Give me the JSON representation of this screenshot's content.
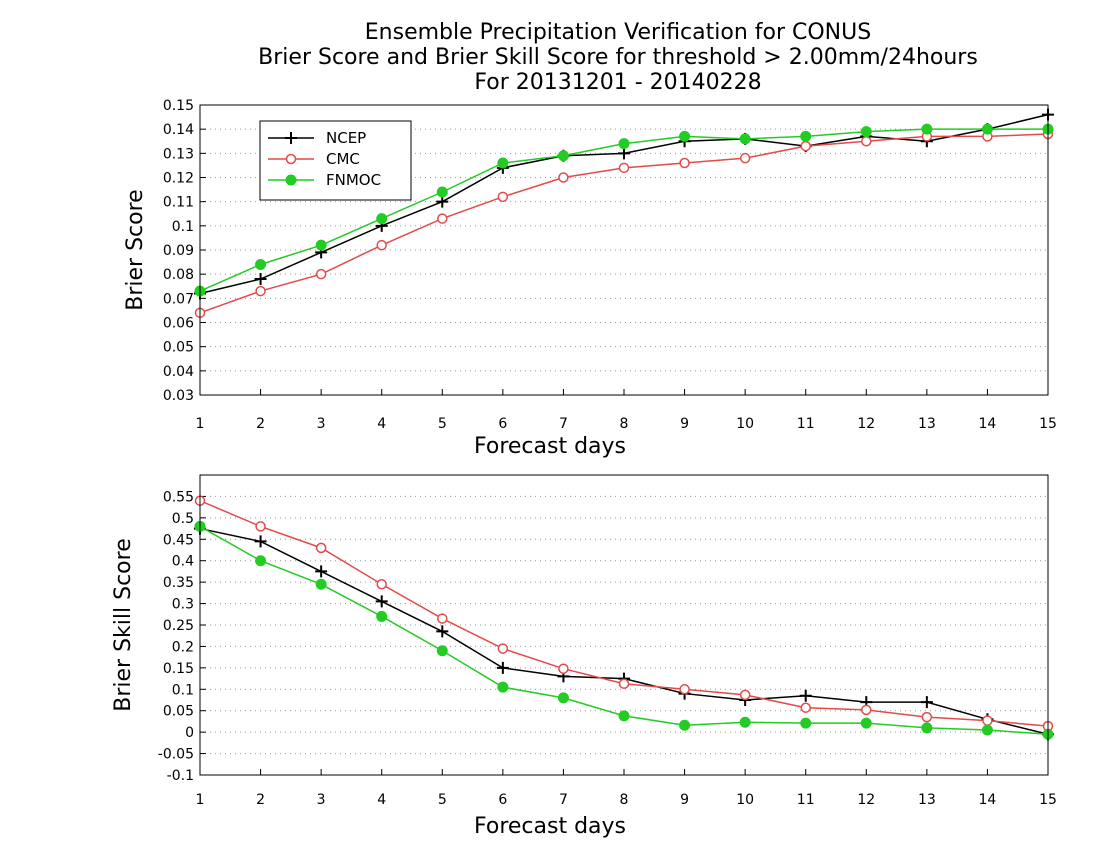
{
  "titles": [
    "Ensemble Precipitation Verification for CONUS",
    "Brier Score and Brier Skill Score for threshold > 2.00mm/24hours",
    "For 20131201 - 20140228"
  ],
  "colors": {
    "NCEP": "#000000",
    "CMC": "#e34a4a",
    "FNMOC": "#22cc22"
  },
  "chart_data": [
    {
      "type": "line",
      "xlabel": "Forecast days",
      "ylabel": "Brier Score",
      "x": [
        1,
        2,
        3,
        4,
        5,
        6,
        7,
        8,
        9,
        10,
        11,
        12,
        13,
        14,
        15
      ],
      "xlim": [
        1,
        15
      ],
      "ylim": [
        0.03,
        0.15
      ],
      "yticks": [
        "0.03",
        "0.04",
        "0.05",
        "0.06",
        "0.07",
        "0.08",
        "0.09",
        "0.1",
        "0.11",
        "0.12",
        "0.13",
        "0.14",
        "0.15"
      ],
      "grid": true,
      "legend_position": "top-left",
      "series": [
        {
          "name": "NCEP",
          "marker": "plus",
          "values": [
            0.072,
            0.078,
            0.089,
            0.1,
            0.11,
            0.124,
            0.129,
            0.13,
            0.135,
            0.136,
            0.133,
            0.137,
            0.135,
            0.14,
            0.146
          ]
        },
        {
          "name": "CMC",
          "marker": "open-circle",
          "values": [
            0.064,
            0.073,
            0.08,
            0.092,
            0.103,
            0.112,
            0.12,
            0.124,
            0.126,
            0.128,
            0.133,
            0.135,
            0.137,
            0.137,
            0.138
          ]
        },
        {
          "name": "FNMOC",
          "marker": "filled-circle",
          "values": [
            0.073,
            0.084,
            0.092,
            0.103,
            0.114,
            0.126,
            0.129,
            0.134,
            0.137,
            0.136,
            0.137,
            0.139,
            0.14,
            0.14,
            0.14
          ]
        }
      ]
    },
    {
      "type": "line",
      "xlabel": "Forecast days",
      "ylabel": "Brier Skill Score",
      "x": [
        1,
        2,
        3,
        4,
        5,
        6,
        7,
        8,
        9,
        10,
        11,
        12,
        13,
        14,
        15
      ],
      "xlim": [
        1,
        15
      ],
      "ylim": [
        -0.1,
        0.6
      ],
      "yticks": [
        "-0.1",
        "-0.05",
        "0",
        "0.05",
        "0.1",
        "0.15",
        "0.2",
        "0.25",
        "0.3",
        "0.35",
        "0.4",
        "0.45",
        "0.5",
        "0.55"
      ],
      "grid": true,
      "series": [
        {
          "name": "NCEP",
          "marker": "plus",
          "values": [
            0.475,
            0.445,
            0.375,
            0.305,
            0.235,
            0.15,
            0.13,
            0.125,
            0.09,
            0.075,
            0.085,
            0.07,
            0.07,
            0.03,
            -0.005
          ]
        },
        {
          "name": "CMC",
          "marker": "open-circle",
          "values": [
            0.54,
            0.48,
            0.43,
            0.345,
            0.265,
            0.195,
            0.148,
            0.113,
            0.1,
            0.087,
            0.057,
            0.052,
            0.035,
            0.027,
            0.014
          ]
        },
        {
          "name": "FNMOC",
          "marker": "filled-circle",
          "values": [
            0.48,
            0.4,
            0.345,
            0.27,
            0.19,
            0.105,
            0.08,
            0.038,
            0.016,
            0.023,
            0.021,
            0.021,
            0.01,
            0.005,
            -0.005
          ]
        }
      ]
    }
  ]
}
